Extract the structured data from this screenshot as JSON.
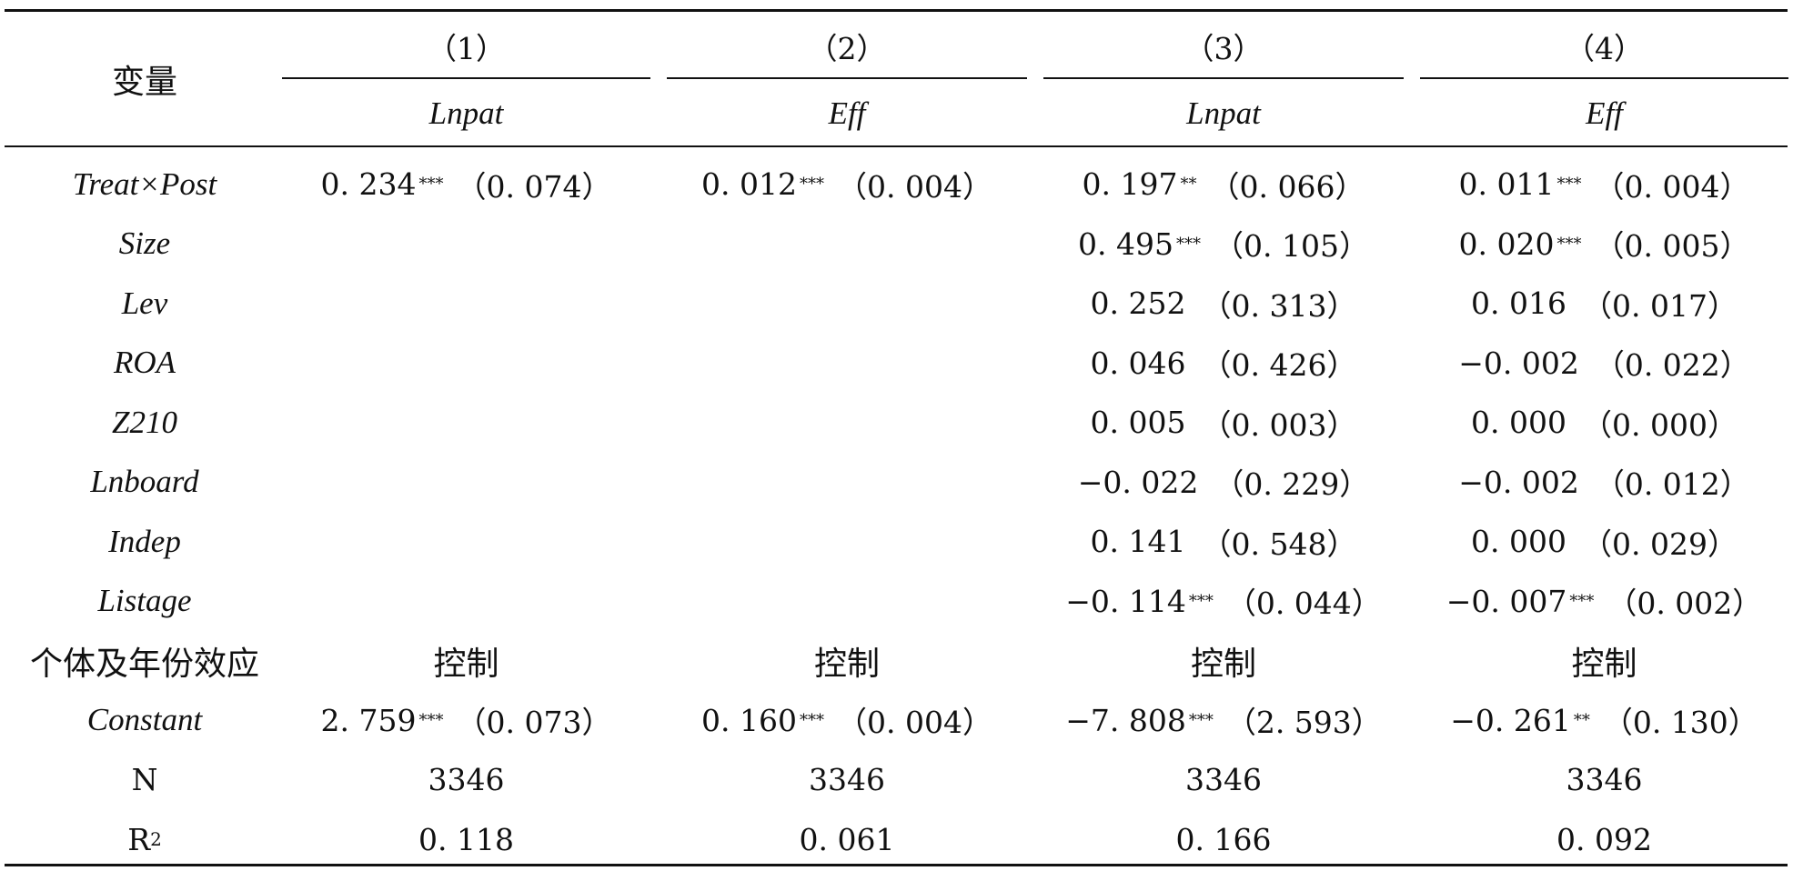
{
  "table": {
    "var_header": "变量",
    "col_numbers": [
      "（1）",
      "（2）",
      "（3）",
      "（4）"
    ],
    "dep_vars": [
      "Lnpat",
      "Eff",
      "Lnpat",
      "Eff"
    ],
    "rows": [
      {
        "label": "Treat×Post",
        "cells": [
          {
            "coef": "0. 234",
            "stars": "***",
            "se": "（0. 074）"
          },
          {
            "coef": "0. 012",
            "stars": "***",
            "se": "（0. 004）"
          },
          {
            "coef": "0. 197",
            "stars": "**",
            "se": "（0. 066）"
          },
          {
            "coef": "0. 011",
            "stars": "***",
            "se": "（0. 004）"
          }
        ]
      },
      {
        "label": "Size",
        "cells": [
          {
            "coef": "",
            "stars": "",
            "se": ""
          },
          {
            "coef": "",
            "stars": "",
            "se": ""
          },
          {
            "coef": "0. 495",
            "stars": "***",
            "se": "（0. 105）"
          },
          {
            "coef": "0. 020",
            "stars": "***",
            "se": "（0. 005）"
          }
        ]
      },
      {
        "label": "Lev",
        "cells": [
          {
            "coef": "",
            "stars": "",
            "se": ""
          },
          {
            "coef": "",
            "stars": "",
            "se": ""
          },
          {
            "coef": "0. 252",
            "stars": "",
            "se": "（0. 313）"
          },
          {
            "coef": "0. 016",
            "stars": "",
            "se": "（0. 017）"
          }
        ]
      },
      {
        "label": "ROA",
        "cells": [
          {
            "coef": "",
            "stars": "",
            "se": ""
          },
          {
            "coef": "",
            "stars": "",
            "se": ""
          },
          {
            "coef": "0. 046",
            "stars": "",
            "se": "（0. 426）"
          },
          {
            "coef": "−0. 002",
            "stars": "",
            "se": "（0. 022）"
          }
        ]
      },
      {
        "label": "Z210",
        "cells": [
          {
            "coef": "",
            "stars": "",
            "se": ""
          },
          {
            "coef": "",
            "stars": "",
            "se": ""
          },
          {
            "coef": "0. 005",
            "stars": "",
            "se": "（0. 003）"
          },
          {
            "coef": "0. 000",
            "stars": "",
            "se": "（0. 000）"
          }
        ]
      },
      {
        "label": "Lnboard",
        "cells": [
          {
            "coef": "",
            "stars": "",
            "se": ""
          },
          {
            "coef": "",
            "stars": "",
            "se": ""
          },
          {
            "coef": "−0. 022",
            "stars": "",
            "se": "（0. 229）"
          },
          {
            "coef": "−0. 002",
            "stars": "",
            "se": "（0. 012）"
          }
        ]
      },
      {
        "label": "Indep",
        "cells": [
          {
            "coef": "",
            "stars": "",
            "se": ""
          },
          {
            "coef": "",
            "stars": "",
            "se": ""
          },
          {
            "coef": "0. 141",
            "stars": "",
            "se": "（0. 548）"
          },
          {
            "coef": "0. 000",
            "stars": "",
            "se": "（0. 029）"
          }
        ]
      },
      {
        "label": "Listage",
        "cells": [
          {
            "coef": "",
            "stars": "",
            "se": ""
          },
          {
            "coef": "",
            "stars": "",
            "se": ""
          },
          {
            "coef": "−0. 114",
            "stars": "***",
            "se": "（0. 044）"
          },
          {
            "coef": "−0. 007",
            "stars": "***",
            "se": "（0. 002）"
          }
        ]
      }
    ],
    "fe_row": {
      "label": "个体及年份效应",
      "cells": [
        "控制",
        "控制",
        "控制",
        "控制"
      ]
    },
    "constant_row": {
      "label": "Constant",
      "cells": [
        {
          "coef": "2. 759",
          "stars": "***",
          "se": "（0. 073）"
        },
        {
          "coef": "0. 160",
          "stars": "***",
          "se": "（0. 004）"
        },
        {
          "coef": "−7. 808",
          "stars": "***",
          "se": "（2. 593）"
        },
        {
          "coef": "−0. 261",
          "stars": "**",
          "se": "（0. 130）"
        }
      ]
    },
    "n_row": {
      "label": "N",
      "cells": [
        "3346",
        "3346",
        "3346",
        "3346"
      ]
    },
    "r2_row": {
      "label": "R",
      "label_sup": "2",
      "cells": [
        "0. 118",
        "0. 061",
        "0. 166",
        "0. 092"
      ]
    }
  }
}
